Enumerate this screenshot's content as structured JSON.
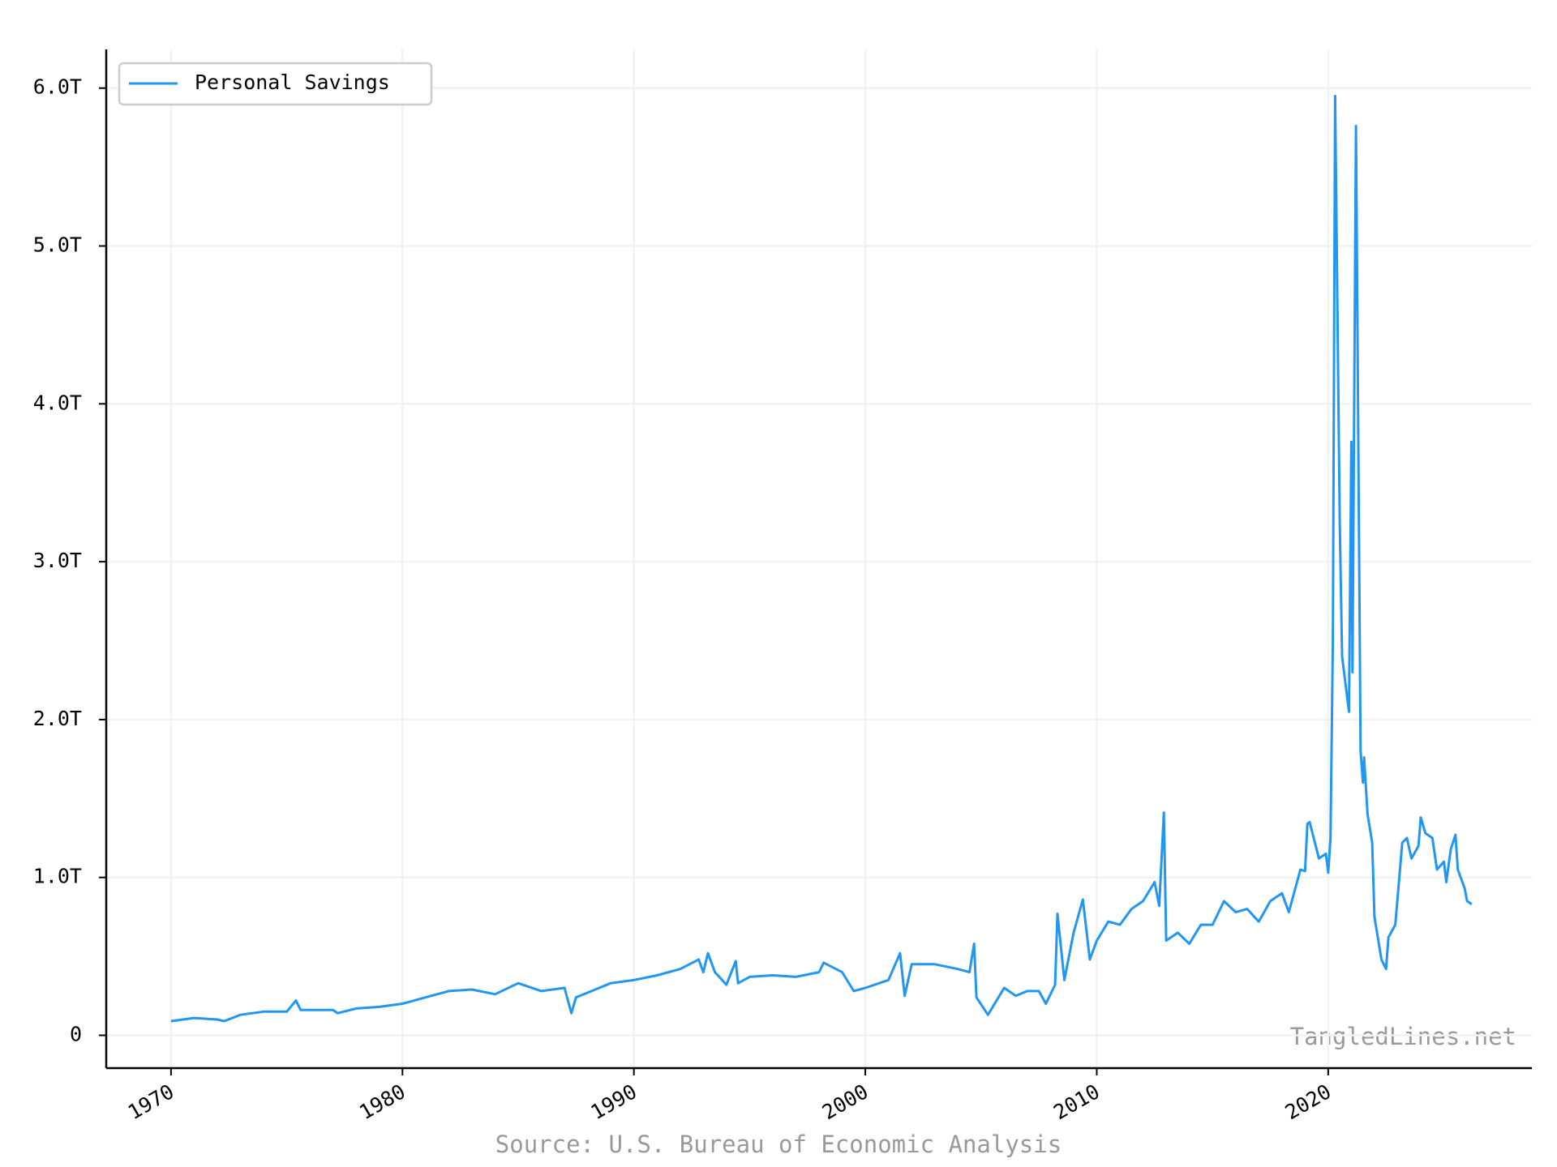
{
  "chart_data": {
    "type": "line",
    "x": [
      1970.0,
      1971.0,
      1972.0,
      1972.3,
      1973.0,
      1974.0,
      1975.0,
      1975.4,
      1975.6,
      1977.0,
      1977.2,
      1978.0,
      1979.0,
      1980.0,
      1981.0,
      1982.0,
      1983.0,
      1984.0,
      1985.0,
      1986.0,
      1987.0,
      1987.3,
      1987.5,
      1988.0,
      1989.0,
      1990.0,
      1991.0,
      1992.0,
      1992.8,
      1993.0,
      1993.2,
      1993.5,
      1994.0,
      1994.4,
      1994.5,
      1995.0,
      1996.0,
      1997.0,
      1998.0,
      1998.2,
      1999.0,
      1999.5,
      2000.0,
      2001.0,
      2001.5,
      2001.7,
      2002.0,
      2003.0,
      2004.0,
      2004.5,
      2004.7,
      2004.8,
      2005.3,
      2006.0,
      2006.5,
      2007.0,
      2007.5,
      2007.8,
      2008.2,
      2008.3,
      2008.6,
      2009.0,
      2009.4,
      2009.7,
      2010.0,
      2010.5,
      2011.0,
      2011.5,
      2012.0,
      2012.5,
      2012.7,
      2012.9,
      2013.0,
      2013.5,
      2014.0,
      2014.5,
      2015.0,
      2015.5,
      2016.0,
      2016.5,
      2017.0,
      2017.5,
      2018.0,
      2018.3,
      2018.8,
      2019.0,
      2019.1,
      2019.2,
      2019.6,
      2019.9,
      2020.0,
      2020.1,
      2020.2,
      2020.3,
      2020.5,
      2020.6,
      2020.9,
      2021.0,
      2021.05,
      2021.2,
      2021.4,
      2021.5,
      2021.55,
      2021.7,
      2021.9,
      2022.0,
      2022.3,
      2022.5,
      2022.6,
      2022.9,
      2023.2,
      2023.4,
      2023.6,
      2023.9,
      2024.0,
      2024.2,
      2024.5,
      2024.7,
      2025.0,
      2025.1,
      2025.3,
      2025.5,
      2025.6,
      2025.9,
      2026.0,
      2026.2
    ],
    "series": [
      {
        "name": "Personal Savings",
        "color": "#2196f3",
        "values": [
          0.09,
          0.11,
          0.1,
          0.09,
          0.13,
          0.15,
          0.15,
          0.22,
          0.16,
          0.16,
          0.14,
          0.17,
          0.18,
          0.2,
          0.24,
          0.28,
          0.29,
          0.26,
          0.33,
          0.28,
          0.3,
          0.14,
          0.24,
          0.27,
          0.33,
          0.35,
          0.38,
          0.42,
          0.48,
          0.4,
          0.52,
          0.4,
          0.32,
          0.47,
          0.33,
          0.37,
          0.38,
          0.37,
          0.4,
          0.46,
          0.4,
          0.28,
          0.3,
          0.35,
          0.52,
          0.25,
          0.45,
          0.45,
          0.42,
          0.4,
          0.58,
          0.24,
          0.13,
          0.3,
          0.25,
          0.28,
          0.28,
          0.2,
          0.32,
          0.77,
          0.35,
          0.65,
          0.86,
          0.48,
          0.6,
          0.72,
          0.7,
          0.8,
          0.85,
          0.97,
          0.82,
          1.41,
          0.6,
          0.65,
          0.58,
          0.7,
          0.7,
          0.85,
          0.78,
          0.8,
          0.72,
          0.85,
          0.9,
          0.78,
          1.05,
          1.04,
          1.34,
          1.35,
          1.12,
          1.15,
          1.03,
          1.25,
          2.5,
          5.95,
          3.25,
          2.4,
          2.05,
          3.76,
          2.3,
          5.76,
          1.8,
          1.6,
          1.76,
          1.4,
          1.22,
          0.75,
          0.48,
          0.42,
          0.62,
          0.7,
          1.22,
          1.25,
          1.12,
          1.2,
          1.38,
          1.28,
          1.25,
          1.05,
          1.1,
          0.97,
          1.18,
          1.27,
          1.05,
          0.93,
          0.85,
          0.83
        ]
      }
    ],
    "xlim": [
      1967.2,
      2028.8
    ],
    "xticks": [
      1970,
      1980,
      1990,
      2000,
      2010,
      2020
    ],
    "ylim": [
      -0.208,
      6.245
    ],
    "yticks": [
      0,
      {
        "value": 1,
        "label": "1.0T"
      },
      {
        "value": 2,
        "label": "2.0T"
      },
      {
        "value": 3,
        "label": "3.0T"
      },
      {
        "value": 4,
        "label": "4.0T"
      },
      {
        "value": 5,
        "label": "5.0T"
      },
      {
        "value": 6,
        "label": "6.0T"
      }
    ],
    "grid": true,
    "legend": "upper-left",
    "watermark": "TangledLines.net",
    "source": "Source: U.S. Bureau of Economic Analysis"
  }
}
